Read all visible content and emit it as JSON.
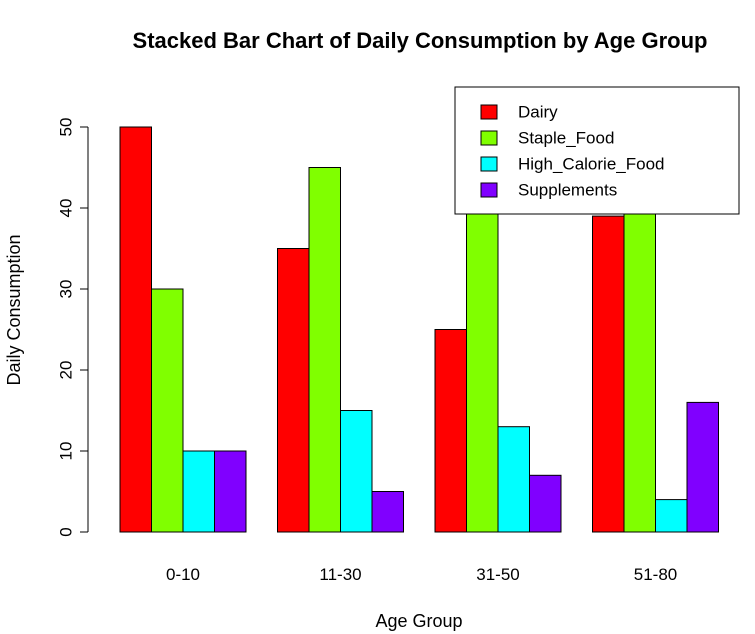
{
  "chart_data": {
    "type": "bar",
    "title": "Stacked Bar Chart of Daily Consumption by Age Group",
    "xlabel": "Age Group",
    "ylabel": "Daily Consumption",
    "categories": [
      "0-10",
      "11-30",
      "31-50",
      "51-80"
    ],
    "series": [
      {
        "name": "Dairy",
        "color": "#ff0000",
        "values": [
          50,
          35,
          25,
          39
        ]
      },
      {
        "name": "Staple_Food",
        "color": "#80ff00",
        "values": [
          30,
          45,
          40,
          40
        ]
      },
      {
        "name": "High_Calorie_Food",
        "color": "#00ffff",
        "values": [
          10,
          15,
          13,
          4
        ]
      },
      {
        "name": "Supplements",
        "color": "#8000ff",
        "values": [
          10,
          5,
          7,
          16
        ]
      }
    ],
    "ylim": [
      0,
      50
    ],
    "yticks": [
      0,
      10,
      20,
      30,
      40,
      50
    ],
    "grid": false,
    "legend_position": "top-right",
    "layout": "grouped"
  }
}
